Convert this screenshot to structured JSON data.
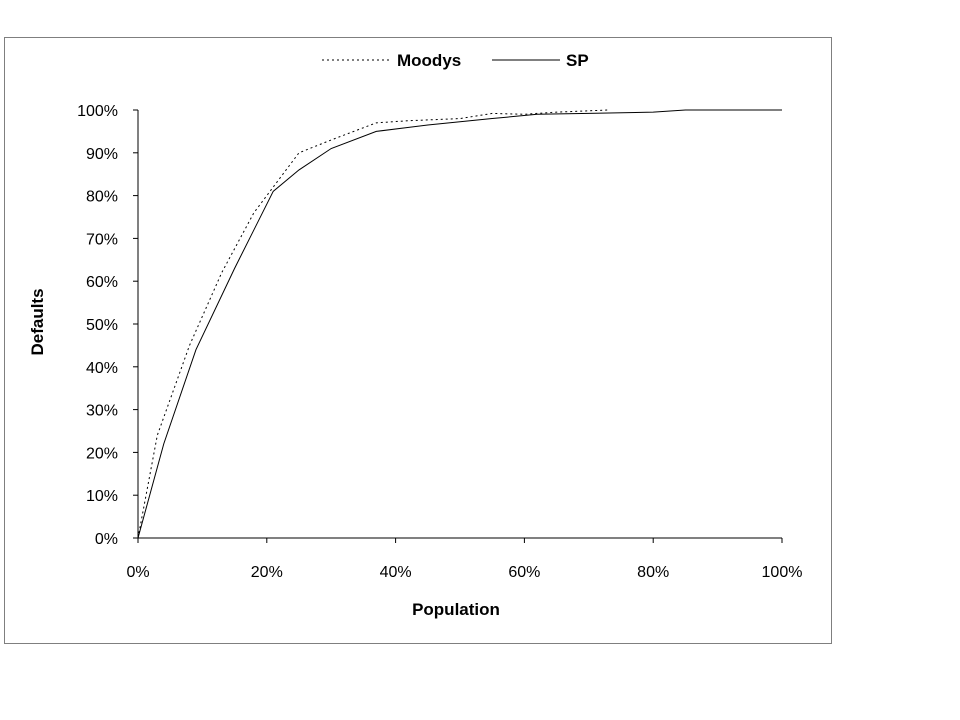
{
  "chart_data": {
    "type": "line",
    "xlabel": "Population",
    "ylabel": "Defaults",
    "xlim": [
      0,
      100
    ],
    "ylim": [
      0,
      100
    ],
    "x_ticks": [
      "0%",
      "20%",
      "40%",
      "60%",
      "80%",
      "100%"
    ],
    "y_ticks": [
      "0%",
      "10%",
      "20%",
      "30%",
      "40%",
      "50%",
      "60%",
      "70%",
      "80%",
      "90%",
      "100%"
    ],
    "grid": false,
    "legend_position": "top",
    "series": [
      {
        "name": "Moodys",
        "style": "dotted",
        "color": "#000000",
        "x": [
          0,
          3,
          8,
          13,
          18,
          21,
          25,
          30,
          37,
          42,
          50,
          55,
          60,
          65,
          73
        ],
        "y": [
          0,
          24,
          45,
          62,
          76,
          82,
          90,
          93,
          97,
          97.5,
          98,
          99.2,
          99,
          99.5,
          100
        ]
      },
      {
        "name": "SP",
        "style": "solid",
        "color": "#000000",
        "x": [
          0,
          4,
          9,
          15,
          21,
          25,
          30,
          37,
          45,
          55,
          62,
          70,
          80,
          85,
          100
        ],
        "y": [
          0,
          22,
          44,
          63,
          81,
          86,
          91,
          95,
          96.5,
          98,
          99,
          99.2,
          99.5,
          100,
          100
        ]
      }
    ]
  }
}
